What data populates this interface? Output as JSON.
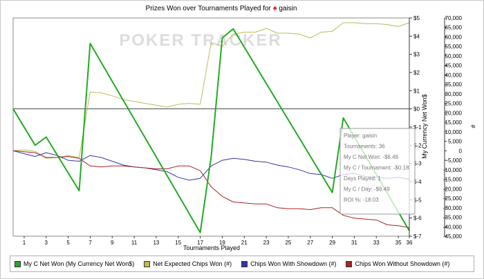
{
  "chart_data": {
    "type": "line",
    "title": "Prizes Won over Tournaments Played for",
    "player": "gaisin",
    "watermark": "POKER TRACKER",
    "xlabel": "Tournaments Played",
    "y_right_label": "My Currency Net Won$",
    "y_right2_label": "#",
    "x_ticks": [
      "1",
      "3",
      "5",
      "7",
      "9",
      "11",
      "13",
      "15",
      "17",
      "19",
      "21",
      "23",
      "25",
      "27",
      "29",
      "31",
      "33",
      "35",
      "36"
    ],
    "xlim": [
      0,
      36
    ],
    "y_currency_ticks": [
      "$5",
      "$4",
      "$3",
      "$2",
      "$1",
      "$0",
      "$-1",
      "$-2",
      "$-3",
      "$-4",
      "$-5",
      "$-6",
      "$-7"
    ],
    "y_currency_lim": [
      -7,
      5
    ],
    "y_chips_ticks": [
      "70,000",
      "65,000",
      "60,000",
      "55,000",
      "50,000",
      "45,000",
      "40,000",
      "35,000",
      "30,000",
      "25,000",
      "20,000",
      "15,000",
      "10,000",
      "5,000",
      "0",
      "-5,000",
      "-10,000",
      "-15,000",
      "-20,000",
      "-25,000",
      "-30,000",
      "-35,000",
      "-40,000",
      "-45,000"
    ],
    "y_chips_lim": [
      -45000,
      70000
    ],
    "series": [
      {
        "name": "My C Net Won (My Currency Net Won$)",
        "axis": "currency",
        "color": "#22aa22",
        "x": [
          0,
          2,
          3,
          6,
          7,
          17,
          18,
          19,
          20,
          29,
          30,
          36
        ],
        "values": [
          0,
          -2,
          -1.55,
          -4.5,
          3.6,
          -6.8,
          -2.6,
          3.9,
          4.4,
          -4.6,
          -0.5,
          -6.7
        ]
      },
      {
        "name": "Net Expected Chips Won (#)",
        "axis": "chips",
        "color": "#bbbb55",
        "x": [
          0,
          1,
          2,
          3,
          4,
          5,
          6,
          7,
          8,
          9,
          10,
          11,
          12,
          13,
          14,
          15,
          16,
          17,
          18,
          19,
          20,
          21,
          22,
          23,
          24,
          25,
          26,
          27,
          28,
          29,
          30,
          31,
          32,
          33,
          34,
          35,
          36
        ],
        "values": [
          0,
          500,
          -300,
          -4000,
          -3500,
          -2500,
          -3500,
          31000,
          30500,
          29000,
          27000,
          26000,
          25000,
          24000,
          23000,
          24500,
          25000,
          24500,
          57000,
          55000,
          61500,
          62500,
          62500,
          64500,
          62000,
          62000,
          61500,
          59500,
          62500,
          63000,
          67500,
          67500,
          67000,
          67000,
          66500,
          65500,
          67500
        ]
      },
      {
        "name": "Chips Won With Showdown (#)",
        "axis": "chips",
        "color": "#3333aa",
        "x": [
          0,
          1,
          2,
          3,
          4,
          5,
          6,
          7,
          8,
          9,
          10,
          11,
          12,
          13,
          14,
          15,
          16,
          17,
          18,
          19,
          20,
          21,
          22,
          23,
          24,
          25,
          26,
          27,
          28,
          29,
          30,
          31,
          32,
          33,
          34,
          35,
          36
        ],
        "values": [
          0,
          -1500,
          -3000,
          -1000,
          -2500,
          -5000,
          -5500,
          -2500,
          -3500,
          -5500,
          -7500,
          -8500,
          -9000,
          -10000,
          -11000,
          -14000,
          -15500,
          -14500,
          -8000,
          -5000,
          -4000,
          -4500,
          -5500,
          -6000,
          -7500,
          -8500,
          -10000,
          -12000,
          -12500,
          -14500,
          -12500,
          -12000,
          -13500,
          -14000,
          -14500,
          -14000,
          -15000
        ]
      },
      {
        "name": "Chips Won Without Showdown (#)",
        "axis": "chips",
        "color": "#aa2222",
        "x": [
          0,
          1,
          2,
          3,
          4,
          5,
          6,
          7,
          8,
          9,
          10,
          11,
          12,
          13,
          14,
          15,
          16,
          17,
          18,
          19,
          20,
          21,
          22,
          23,
          24,
          25,
          26,
          27,
          28,
          29,
          30,
          31,
          32,
          33,
          34,
          35,
          36
        ],
        "values": [
          0,
          -500,
          -1000,
          -3500,
          -3500,
          -3000,
          -4000,
          -8000,
          -8500,
          -8000,
          -8000,
          -8500,
          -9000,
          -9500,
          -9500,
          -8000,
          -8000,
          -10500,
          -19000,
          -24000,
          -27000,
          -27500,
          -28000,
          -28000,
          -30000,
          -30500,
          -30500,
          -31000,
          -30000,
          -30000,
          -34000,
          -35500,
          -36000,
          -36500,
          -39000,
          -39500,
          -40500
        ]
      }
    ],
    "reference_line": {
      "axis": "currency",
      "value": 0,
      "color": "#444444"
    },
    "tooltip": {
      "lines": [
        "Player: gaisin",
        "Tournaments: 36",
        "My C Net Won: -$6.49",
        "My C / Tournament: -$0.18",
        "Days Played: 1",
        "My C / Day: -$6.49",
        "ROI %: -18.03"
      ]
    }
  }
}
